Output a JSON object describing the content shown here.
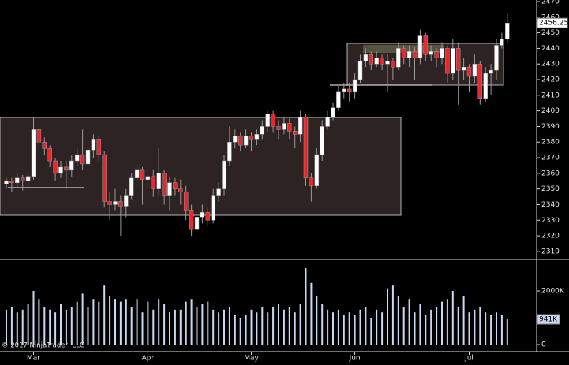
{
  "chart_data": [
    {
      "type": "candlestick",
      "categories": [
        null,
        null,
        null,
        null,
        null,
        "Mar",
        null,
        null,
        null,
        null,
        null,
        null,
        null,
        null,
        null,
        null,
        null,
        null,
        null,
        null,
        null,
        null,
        null,
        null,
        null,
        null,
        "Apr",
        null,
        null,
        null,
        null,
        null,
        null,
        null,
        null,
        null,
        null,
        null,
        null,
        null,
        null,
        null,
        null,
        null,
        null,
        "May",
        null,
        null,
        null,
        null,
        null,
        null,
        null,
        null,
        null,
        null,
        null,
        null,
        null,
        null,
        null,
        null,
        null,
        null,
        "Jun",
        null,
        null,
        null,
        null,
        null,
        null,
        null,
        null,
        null,
        null,
        null,
        null,
        null,
        null,
        null,
        null,
        null,
        null,
        null,
        null,
        "Jul",
        null,
        null,
        null,
        null,
        null,
        null,
        null
      ],
      "open": [
        2353,
        2355,
        2354,
        2357,
        2355,
        2358,
        2388,
        2380,
        2376,
        2368,
        2360,
        2364,
        2362,
        2368,
        2372,
        2366,
        2375,
        2382,
        2372,
        2342,
        2340,
        2342,
        2339,
        2346,
        2357,
        2362,
        2356,
        2358,
        2350,
        2360,
        2346,
        2354,
        2350,
        2348,
        2336,
        2324,
        2332,
        2335,
        2330,
        2346,
        2350,
        2368,
        2380,
        2384,
        2378,
        2384,
        2382,
        2385,
        2390,
        2398,
        2390,
        2388,
        2392,
        2387,
        2385,
        2396,
        2357,
        2352,
        2372,
        2390,
        2396,
        2402,
        2412,
        2414,
        2412,
        2420,
        2432,
        2436,
        2430,
        2434,
        2430,
        2432,
        2428,
        2440,
        2434,
        2438,
        2434,
        2448,
        2436,
        2438,
        2434,
        2440,
        2424,
        2440,
        2426,
        2428,
        2422,
        2430,
        2408,
        2424,
        2426,
        2442,
        2446
      ],
      "high": [
        2357,
        2357,
        2360,
        2359,
        2361,
        2396,
        2389,
        2383,
        2378,
        2370,
        2368,
        2368,
        2372,
        2376,
        2388,
        2380,
        2385,
        2384,
        2374,
        2348,
        2350,
        2346,
        2350,
        2360,
        2366,
        2364,
        2362,
        2362,
        2376,
        2362,
        2358,
        2357,
        2356,
        2352,
        2340,
        2336,
        2340,
        2338,
        2350,
        2354,
        2372,
        2390,
        2388,
        2386,
        2388,
        2386,
        2388,
        2394,
        2400,
        2400,
        2394,
        2396,
        2395,
        2390,
        2400,
        2398,
        2360,
        2376,
        2394,
        2400,
        2405,
        2416,
        2418,
        2418,
        2424,
        2436,
        2440,
        2438,
        2438,
        2436,
        2436,
        2434,
        2444,
        2442,
        2442,
        2441,
        2452,
        2450,
        2442,
        2440,
        2444,
        2442,
        2446,
        2444,
        2434,
        2430,
        2436,
        2432,
        2428,
        2430,
        2446,
        2450,
        2462
      ],
      "low": [
        2350,
        2348,
        2351,
        2349,
        2352,
        2356,
        2376,
        2372,
        2364,
        2355,
        2357,
        2350,
        2358,
        2365,
        2362,
        2363,
        2370,
        2368,
        2338,
        2330,
        2336,
        2320,
        2332,
        2343,
        2352,
        2340,
        2350,
        2345,
        2346,
        2340,
        2336,
        2346,
        2340,
        2330,
        2320,
        2322,
        2328,
        2326,
        2328,
        2342,
        2346,
        2365,
        2376,
        2374,
        2376,
        2374,
        2378,
        2382,
        2386,
        2386,
        2382,
        2385,
        2382,
        2376,
        2380,
        2352,
        2342,
        2350,
        2368,
        2388,
        2394,
        2400,
        2408,
        2406,
        2408,
        2418,
        2428,
        2426,
        2428,
        2426,
        2412,
        2420,
        2426,
        2430,
        2428,
        2420,
        2430,
        2432,
        2432,
        2428,
        2430,
        2418,
        2420,
        2404,
        2420,
        2412,
        2418,
        2404,
        2406,
        2410,
        2420,
        2440,
        2444
      ],
      "close": [
        2355,
        2354,
        2357,
        2355,
        2358,
        2388,
        2380,
        2376,
        2368,
        2360,
        2364,
        2362,
        2368,
        2372,
        2366,
        2375,
        2382,
        2372,
        2342,
        2340,
        2342,
        2339,
        2346,
        2357,
        2362,
        2356,
        2358,
        2350,
        2360,
        2346,
        2354,
        2350,
        2348,
        2336,
        2324,
        2332,
        2335,
        2330,
        2346,
        2350,
        2368,
        2380,
        2384,
        2378,
        2384,
        2382,
        2385,
        2390,
        2398,
        2390,
        2388,
        2392,
        2387,
        2385,
        2396,
        2357,
        2352,
        2372,
        2390,
        2396,
        2402,
        2412,
        2414,
        2412,
        2420,
        2432,
        2436,
        2430,
        2434,
        2430,
        2432,
        2428,
        2440,
        2434,
        2438,
        2434,
        2448,
        2436,
        2438,
        2434,
        2440,
        2424,
        2440,
        2426,
        2428,
        2422,
        2430,
        2408,
        2424,
        2426,
        2442,
        2446,
        2456.25
      ],
      "up_color": "#ffffff",
      "down_color": "#e8262c",
      "wick_color": "#9a9a9a",
      "ylim": [
        2305.4,
        2471
      ],
      "yticks": [
        2310,
        2320,
        2330,
        2340,
        2350,
        2360,
        2370,
        2380,
        2390,
        2400,
        2410,
        2420,
        2430,
        2440,
        2450,
        2460,
        2470
      ],
      "last_price": {
        "value": 2456.25,
        "label": "2456.25"
      }
    },
    {
      "type": "bar",
      "values": [
        1300000,
        1400000,
        1200000,
        1300000,
        1500000,
        2000000,
        1700000,
        1400000,
        1300000,
        1200000,
        1500000,
        1300000,
        1400000,
        1600000,
        1900000,
        1400000,
        1700000,
        1600000,
        2200000,
        1800000,
        1700000,
        1600000,
        1700000,
        1400000,
        1700000,
        1200000,
        1600000,
        1300000,
        1700000,
        1500000,
        1200000,
        1300000,
        1300000,
        1600000,
        1700000,
        1400000,
        1500000,
        1600000,
        1300000,
        1200000,
        1300000,
        1400000,
        1100000,
        1000000,
        1100000,
        1300000,
        1200000,
        1400000,
        1200000,
        1400000,
        1500000,
        1300000,
        1400000,
        1200000,
        1500000,
        2850000,
        2300000,
        1800000,
        1500000,
        1300000,
        1200000,
        1300000,
        1100000,
        1200000,
        1100000,
        1300000,
        1400000,
        1000000,
        1300000,
        1200000,
        2100000,
        2200000,
        1800000,
        1400000,
        1700000,
        1200000,
        1500000,
        1100000,
        1300000,
        1400000,
        1600000,
        1700000,
        2000000,
        1400000,
        1800000,
        1200000,
        1300000,
        1400000,
        1200000,
        1100000,
        1200000,
        1100000,
        941000
      ],
      "color": "#c9d9f2",
      "ylim": [
        -235000,
        3147000
      ],
      "yticks": [
        0,
        {
          "value": 2000000,
          "label": "2000K"
        }
      ],
      "last_value": {
        "value": 941000,
        "label": "941K"
      }
    }
  ],
  "copyright": "© 2017 NinjaTrader, LLC"
}
